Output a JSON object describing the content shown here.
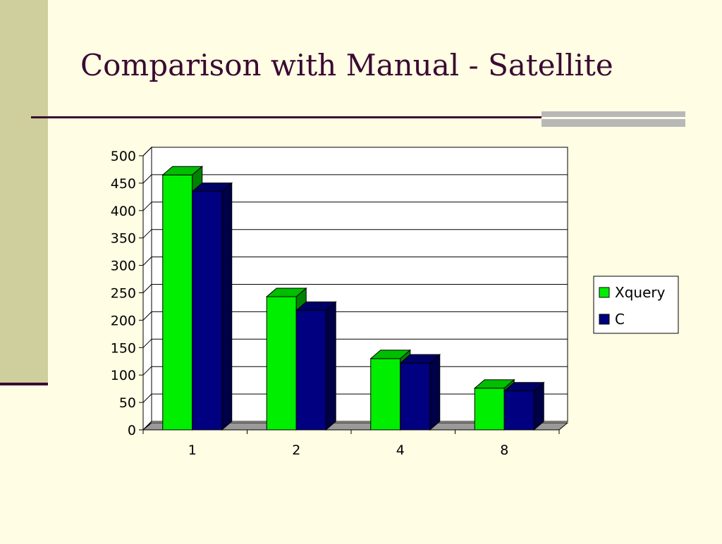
{
  "slide": {
    "title": "Comparison with Manual - Satellite"
  },
  "colors": {
    "background": "#fffde3",
    "sidebar": "#cfcf9d",
    "title": "#3a0a33",
    "accent_bar": "#b8b8b8"
  },
  "chart_data": {
    "type": "bar",
    "style": "3d-clustered-column",
    "title": "",
    "xlabel": "",
    "ylabel": "",
    "categories": [
      "1",
      "2",
      "4",
      "8"
    ],
    "ylim": [
      0,
      500
    ],
    "yticks": [
      0,
      50,
      100,
      150,
      200,
      250,
      300,
      350,
      400,
      450,
      500
    ],
    "grid": true,
    "legend_position": "right",
    "series": [
      {
        "name": "Xquery",
        "color": "#00ee00",
        "values": [
          465,
          243,
          130,
          76
        ]
      },
      {
        "name": "C",
        "color": "#000080",
        "values": [
          435,
          218,
          122,
          71
        ]
      }
    ]
  }
}
